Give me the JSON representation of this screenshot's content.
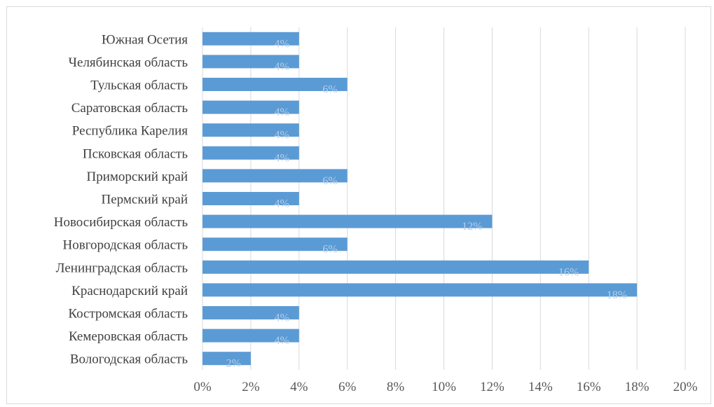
{
  "chart_data": {
    "type": "bar",
    "orientation": "horizontal",
    "categories": [
      "Южная Осетия",
      "Челябинская область",
      "Тульская область",
      "Саратовская область",
      "Республика Карелия",
      "Псковская область",
      "Приморский край",
      "Пермский край",
      "Новосибирская область",
      "Новгородская область",
      "Ленинградская область",
      "Краснодарский край",
      "Костромская область",
      "Кемеровская область",
      "Вологодская область"
    ],
    "values": [
      4,
      4,
      6,
      4,
      4,
      4,
      6,
      4,
      12,
      6,
      16,
      18,
      4,
      4,
      2
    ],
    "data_labels": [
      "4%",
      "4%",
      "6%",
      "4%",
      "4%",
      "4%",
      "6%",
      "4%",
      "12%",
      "6%",
      "16%",
      "18%",
      "4%",
      "4%",
      "2%"
    ],
    "x_ticks": [
      "0%",
      "2%",
      "4%",
      "6%",
      "8%",
      "10%",
      "12%",
      "14%",
      "16%",
      "18%",
      "20%"
    ],
    "xlim": [
      0,
      20
    ],
    "grid": "vertical",
    "legend": "none",
    "colors": {
      "bar": "#5b9bd5",
      "grid": "#d9d9d9",
      "text": "#404040"
    }
  }
}
